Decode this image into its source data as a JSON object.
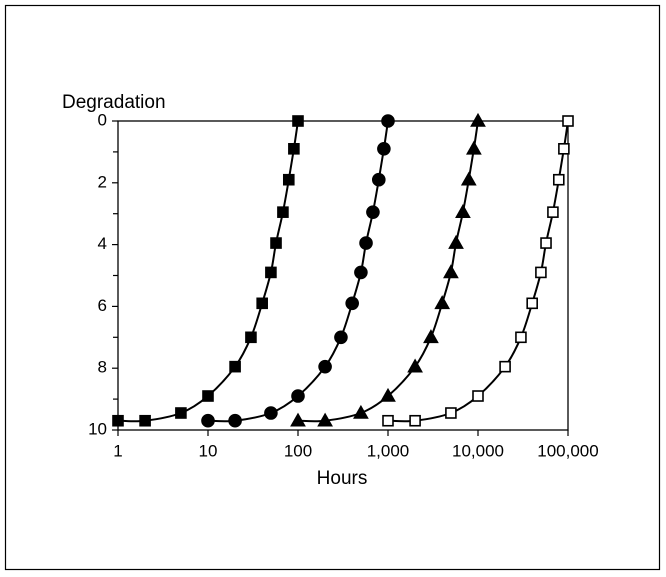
{
  "chart_data": {
    "type": "line",
    "y_label": "Degradation",
    "x_label": "Hours",
    "xscale": "log",
    "xlim": [
      1,
      100000
    ],
    "xticks": [
      1,
      10,
      100,
      {
        "value": 1000,
        "label": "1,000"
      },
      {
        "value": 10000,
        "label": "10,000"
      },
      {
        "value": 100000,
        "label": "100,000"
      }
    ],
    "ylim": [
      10,
      0
    ],
    "yticks": [
      0,
      2,
      4,
      6,
      8,
      10
    ],
    "yminor_ticks": [
      1,
      3,
      5,
      7,
      9
    ],
    "color": "#000000",
    "series": [
      {
        "marker": "filled-square",
        "x": [
          1,
          2,
          5,
          10,
          20,
          30,
          40,
          50,
          57,
          68,
          79,
          90,
          100
        ],
        "values": [
          9.7,
          9.7,
          9.45,
          8.9,
          7.95,
          7,
          5.9,
          4.9,
          3.95,
          2.95,
          1.9,
          0.9,
          0
        ]
      },
      {
        "marker": "filled-circle",
        "x": [
          10,
          20,
          50,
          100,
          200,
          300,
          400,
          500,
          570,
          680,
          790,
          900,
          1000
        ],
        "values": [
          9.7,
          9.7,
          9.45,
          8.9,
          7.95,
          7,
          5.9,
          4.9,
          3.95,
          2.95,
          1.9,
          0.9,
          0
        ]
      },
      {
        "marker": "filled-triangle",
        "x": [
          100,
          200,
          500,
          1000,
          2000,
          3000,
          4000,
          5000,
          5700,
          6800,
          7900,
          9000,
          10000
        ],
        "values": [
          9.7,
          9.7,
          9.45,
          8.9,
          7.95,
          7,
          5.9,
          4.9,
          3.95,
          2.95,
          1.9,
          0.9,
          0
        ]
      },
      {
        "marker": "open-square",
        "x": [
          1000,
          2000,
          5000,
          10000,
          20000,
          30000,
          40000,
          50000,
          57000,
          68000,
          79000,
          90000,
          100000
        ],
        "values": [
          9.7,
          9.7,
          9.45,
          8.9,
          7.95,
          7,
          5.9,
          4.9,
          3.95,
          2.95,
          1.9,
          0.9,
          0
        ]
      }
    ]
  }
}
